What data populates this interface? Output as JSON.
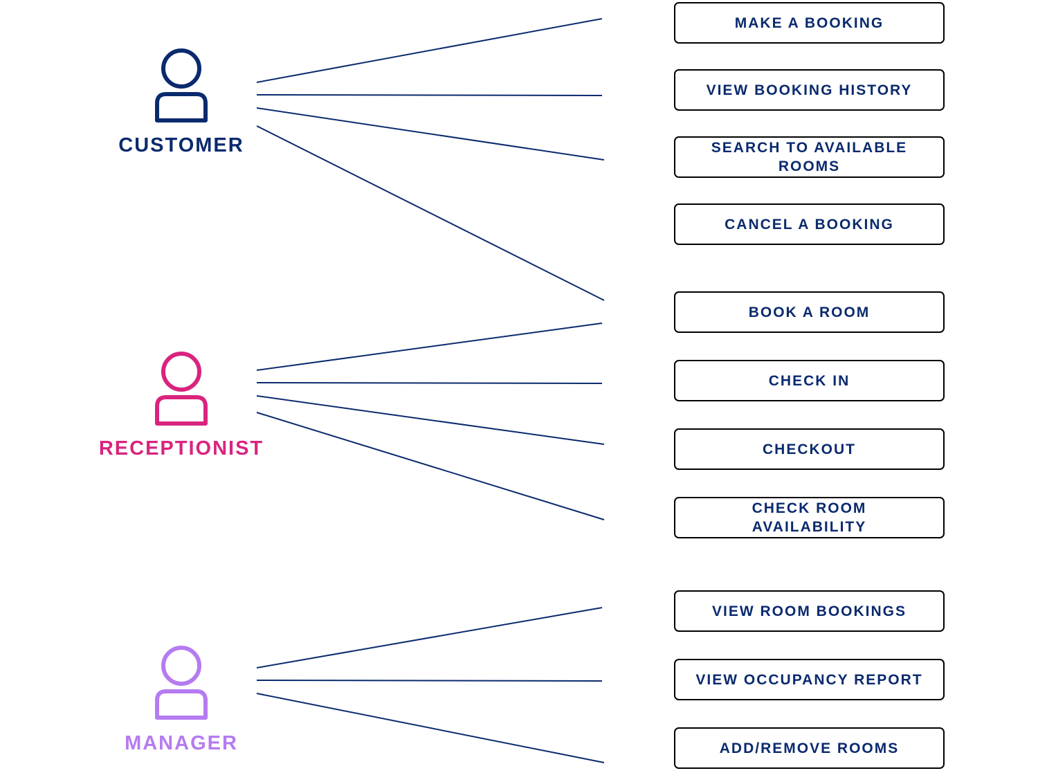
{
  "line_color": "#0a2a6e",
  "actors": [
    {
      "name": "CUSTOMER",
      "color": "#0a2a6e",
      "icon": "person-icon"
    },
    {
      "name": "RECEPTIONIST",
      "color": "#d9247e",
      "icon": "person-icon"
    },
    {
      "name": "MANAGER",
      "color": "#b57bf0",
      "icon": "person-icon"
    }
  ],
  "use_cases": [
    {
      "label": "MAKE A BOOKING",
      "actor": "CUSTOMER"
    },
    {
      "label": "VIEW BOOKING HISTORY",
      "actor": "CUSTOMER"
    },
    {
      "label": "SEARCH TO AVAILABLE ROOMS",
      "actor": "CUSTOMER"
    },
    {
      "label": "CANCEL A BOOKING",
      "actor": "CUSTOMER"
    },
    {
      "label": "BOOK A ROOM",
      "actor": "CUSTOMER"
    },
    {
      "label": "CHECK IN",
      "actor": "RECEPTIONIST"
    },
    {
      "label": "CHECKOUT",
      "actor": "RECEPTIONIST"
    },
    {
      "label": "CHECK ROOM AVAILABILITY",
      "actor": "RECEPTIONIST"
    },
    {
      "label": "VIEW ROOM BOOKINGS",
      "actor": "MANAGER"
    },
    {
      "label": "VIEW OCCUPANCY REPORT",
      "actor": "MANAGER"
    },
    {
      "label": "ADD/REMOVE ROOMS",
      "actor": "MANAGER"
    }
  ]
}
